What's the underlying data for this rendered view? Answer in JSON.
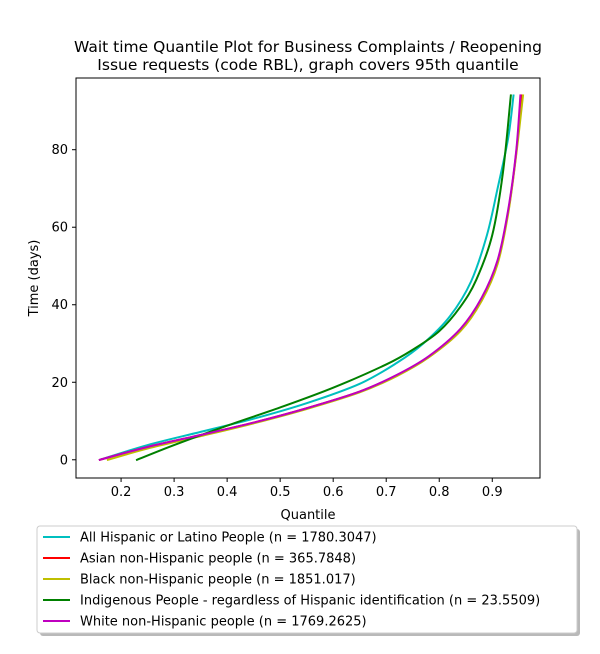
{
  "chart_data": {
    "type": "line",
    "title_lines": [
      "Wait time Quantile Plot for Business Complaints / Reopening",
      "Issue  requests (code RBL), graph covers 95th quantile"
    ],
    "xlabel": "Quantile",
    "ylabel": "Time (days)",
    "xlim": [
      0.115,
      0.99
    ],
    "ylim": [
      -4.7,
      98.5
    ],
    "xticks": [
      0.2,
      0.3,
      0.4,
      0.5,
      0.6,
      0.7,
      0.8,
      0.9
    ],
    "xtick_labels": [
      "0.2",
      "0.3",
      "0.4",
      "0.5",
      "0.6",
      "0.7",
      "0.8",
      "0.9"
    ],
    "yticks": [
      0,
      20,
      40,
      60,
      80
    ],
    "ytick_labels": [
      "0",
      "20",
      "40",
      "60",
      "80"
    ],
    "grid": false,
    "legend_position": "below-plot",
    "series": [
      {
        "name": "All Hispanic or Latino People (n = 1780.3047)",
        "color": "#00bfbf",
        "x": [
          0.16,
          0.25,
          0.35,
          0.45,
          0.55,
          0.65,
          0.72,
          0.77,
          0.82,
          0.86,
          0.89,
          0.91,
          0.93,
          0.94
        ],
        "y": [
          0,
          3.8,
          7.2,
          10.6,
          14.6,
          19.6,
          25,
          30,
          37,
          46,
          58,
          70,
          83,
          94
        ]
      },
      {
        "name": "Asian non-Hispanic people (n = 365.7848)",
        "color": "#ff0000",
        "x": [
          0.16,
          0.25,
          0.35,
          0.45,
          0.55,
          0.65,
          0.72,
          0.78,
          0.84,
          0.88,
          0.91,
          0.93,
          0.945,
          0.955
        ],
        "y": [
          0,
          3.3,
          6.4,
          9.6,
          13.3,
          17.6,
          21.8,
          26.5,
          33.5,
          41.5,
          51,
          64,
          79,
          94
        ]
      },
      {
        "name": "Black non-Hispanic people (n = 1851.017)",
        "color": "#bfbf00",
        "x": [
          0.175,
          0.25,
          0.35,
          0.45,
          0.55,
          0.65,
          0.72,
          0.78,
          0.84,
          0.88,
          0.91,
          0.93,
          0.945,
          0.958
        ],
        "y": [
          0,
          2.9,
          6.1,
          9.4,
          13.1,
          17.4,
          21.6,
          26.4,
          33.2,
          41,
          50.5,
          63.5,
          78.5,
          94
        ]
      },
      {
        "name": "Indigenous People - regardless of Hispanic identification (n = 23.5509)",
        "color": "#008000",
        "x": [
          0.23,
          0.3,
          0.4,
          0.5,
          0.6,
          0.7,
          0.75,
          0.8,
          0.84,
          0.87,
          0.9,
          0.92,
          0.935
        ],
        "y": [
          0,
          3.8,
          8.8,
          13.5,
          18.6,
          24.6,
          28.4,
          33.2,
          39.5,
          46.5,
          58,
          74,
          94
        ]
      },
      {
        "name": "White non-Hispanic people (n = 1769.2625)",
        "color": "#bf00bf",
        "x": [
          0.16,
          0.25,
          0.35,
          0.45,
          0.55,
          0.65,
          0.72,
          0.78,
          0.84,
          0.88,
          0.91,
          0.93,
          0.945,
          0.953
        ],
        "y": [
          0,
          3.3,
          6.4,
          9.6,
          13.3,
          17.6,
          21.9,
          26.7,
          33.8,
          41.8,
          51.5,
          64.5,
          79.5,
          94
        ]
      }
    ]
  }
}
